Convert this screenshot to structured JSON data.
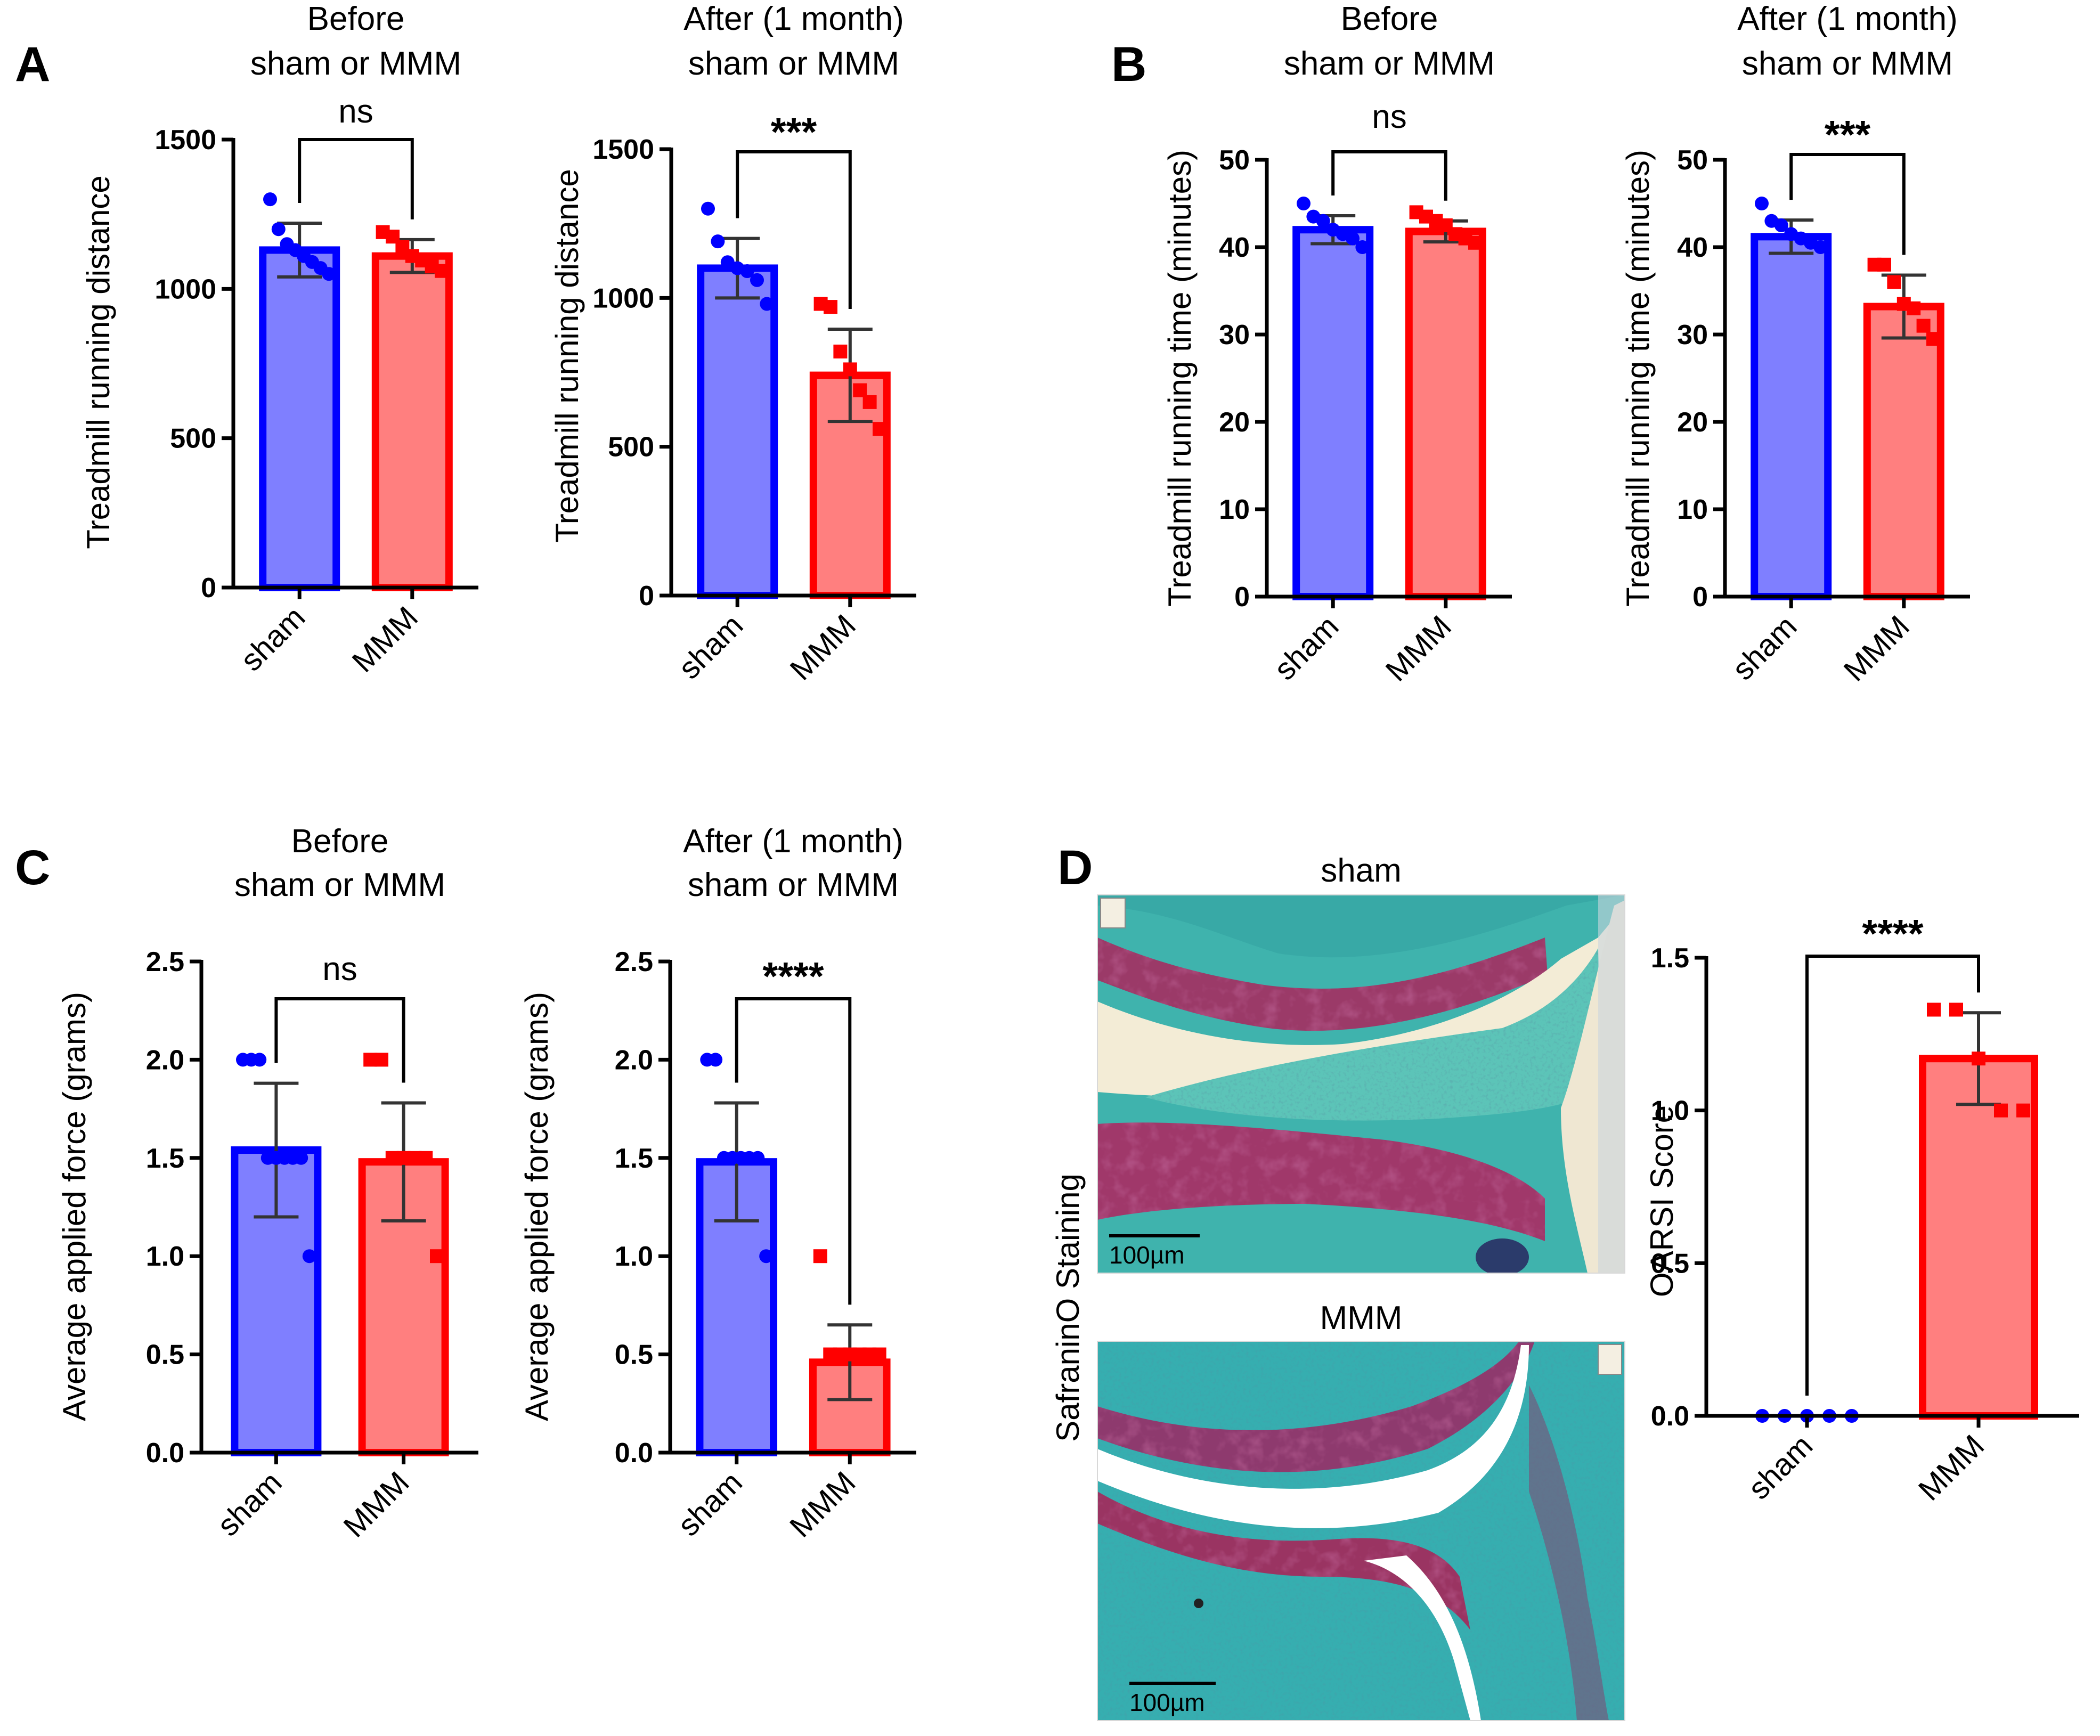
{
  "colors": {
    "sham_bar": "#7f7fff",
    "sham_edge": "#0000ff",
    "mmm_bar": "#ff7f7f",
    "mmm_edge": "#ff0000",
    "errbar": "#333333",
    "axis": "#000000"
  },
  "chart_data": [
    {
      "id": "A1",
      "panel": "A",
      "type": "bar",
      "title_lines": [
        "Before",
        "sham or MMM"
      ],
      "ylabel": "Treadmill running distance",
      "categories": [
        "sham",
        "MMM"
      ],
      "ylim": [
        0,
        1500
      ],
      "yticks": [
        0,
        500,
        1000,
        1500
      ],
      "ytick_labels": [
        "0",
        "500",
        "1000",
        "1500"
      ],
      "values": [
        1130,
        1110
      ],
      "errors": [
        90,
        55
      ],
      "points": [
        [
          1300,
          1200,
          1150,
          1130,
          1110,
          1090,
          1070,
          1050
        ],
        [
          1190,
          1175,
          1140,
          1110,
          1095,
          1075,
          1060
        ]
      ],
      "significance": "ns"
    },
    {
      "id": "A2",
      "panel": "",
      "type": "bar",
      "title_lines": [
        "After (1 month)",
        "sham or MMM"
      ],
      "ylabel": "Treadmill running distance",
      "categories": [
        "sham",
        "MMM"
      ],
      "ylim": [
        0,
        1500
      ],
      "yticks": [
        0,
        500,
        1000,
        1500
      ],
      "ytick_labels": [
        "0",
        "500",
        "1000",
        "1500"
      ],
      "values": [
        1100,
        740
      ],
      "errors": [
        100,
        155
      ],
      "points": [
        [
          1300,
          1190,
          1120,
          1100,
          1090,
          1060,
          980
        ],
        [
          980,
          970,
          820,
          760,
          690,
          650,
          560
        ]
      ],
      "significance": "***"
    },
    {
      "id": "B1",
      "panel": "B",
      "type": "bar",
      "title_lines": [
        "Before",
        "sham or MMM"
      ],
      "ylabel": "Treadmill running time (minutes)",
      "categories": [
        "sham",
        "MMM"
      ],
      "ylim": [
        0,
        50
      ],
      "yticks": [
        0,
        10,
        20,
        30,
        40,
        50
      ],
      "ytick_labels": [
        "0",
        "10",
        "20",
        "30",
        "40",
        "50"
      ],
      "values": [
        42,
        41.8
      ],
      "errors": [
        1.6,
        1.2
      ],
      "points": [
        [
          45,
          43.5,
          43,
          42,
          41.5,
          41,
          40
        ],
        [
          44,
          43.5,
          43,
          42.5,
          41.5,
          41,
          40.5
        ]
      ],
      "significance": "ns"
    },
    {
      "id": "B2",
      "panel": "",
      "type": "bar",
      "title_lines": [
        "After (1 month)",
        "sham or MMM"
      ],
      "ylabel": "Treadmill running time (minutes)",
      "categories": [
        "sham",
        "MMM"
      ],
      "ylim": [
        0,
        50
      ],
      "yticks": [
        0,
        10,
        20,
        30,
        40,
        50
      ],
      "ytick_labels": [
        "0",
        "10",
        "20",
        "30",
        "40",
        "50"
      ],
      "values": [
        41.2,
        33.2
      ],
      "errors": [
        1.9,
        3.6
      ],
      "points": [
        [
          45,
          43,
          42.5,
          41.5,
          41,
          40.5,
          40
        ],
        [
          38,
          38,
          36,
          33.5,
          33,
          31,
          29.5
        ]
      ],
      "significance": "***"
    },
    {
      "id": "C1",
      "panel": "C",
      "type": "bar",
      "title_lines": [
        "Before",
        "sham or MMM"
      ],
      "ylabel": "Average applied force (grams)",
      "categories": [
        "sham",
        "MMM"
      ],
      "ylim": [
        0,
        2.5
      ],
      "yticks": [
        0,
        0.5,
        1.0,
        1.5,
        2.0,
        2.5
      ],
      "ytick_labels": [
        "0.0",
        "0.5",
        "1.0",
        "1.5",
        "2.0",
        "2.5"
      ],
      "values": [
        1.54,
        1.48
      ],
      "errors": [
        0.34,
        0.3
      ],
      "points": [
        [
          2,
          2,
          2,
          1.5,
          1.5,
          1.5,
          1.5,
          1.5,
          1
        ],
        [
          2,
          2,
          1.5,
          1.5,
          1.5,
          1.5,
          1
        ]
      ],
      "significance": "ns"
    },
    {
      "id": "C2",
      "panel": "",
      "type": "bar",
      "title_lines": [
        "After (1 month)",
        "sham or MMM"
      ],
      "ylabel": "Average applied force (grams)",
      "categories": [
        "sham",
        "MMM"
      ],
      "ylim": [
        0,
        2.5
      ],
      "yticks": [
        0,
        0.5,
        1.0,
        1.5,
        2.0,
        2.5
      ],
      "ytick_labels": [
        "0.0",
        "0.5",
        "1.0",
        "1.5",
        "2.0",
        "2.5"
      ],
      "values": [
        1.48,
        0.46
      ],
      "errors": [
        0.3,
        0.19
      ],
      "points": [
        [
          2,
          2,
          1.5,
          1.5,
          1.5,
          1.5,
          1.5,
          1
        ],
        [
          1,
          0.5,
          0.5,
          0.5,
          0.5,
          0.5,
          0.5
        ]
      ],
      "significance": "****"
    },
    {
      "id": "D1",
      "panel": "",
      "type": "bar",
      "title_lines": [],
      "ylabel": "OARSI Score",
      "categories": [
        "sham",
        "MMM"
      ],
      "ylim": [
        0,
        1.5
      ],
      "yticks": [
        0,
        0.5,
        1.0,
        1.5
      ],
      "ytick_labels": [
        "0.0",
        "0.5",
        "1.0",
        "1.5"
      ],
      "values": [
        0.0,
        1.17
      ],
      "errors": [
        0.0,
        0.15
      ],
      "points": [
        [
          0,
          0,
          0,
          0,
          0
        ],
        [
          1.33,
          1.33,
          1.17,
          1.0,
          1.0
        ]
      ],
      "significance": "****"
    }
  ],
  "panel_d": {
    "letter": "D",
    "image_top_title": "sham",
    "image_bottom_title": "MMM",
    "side_label": "SafraninO Staining",
    "scale_bar_top": "100µm",
    "scale_bar_bottom": "100µm"
  }
}
